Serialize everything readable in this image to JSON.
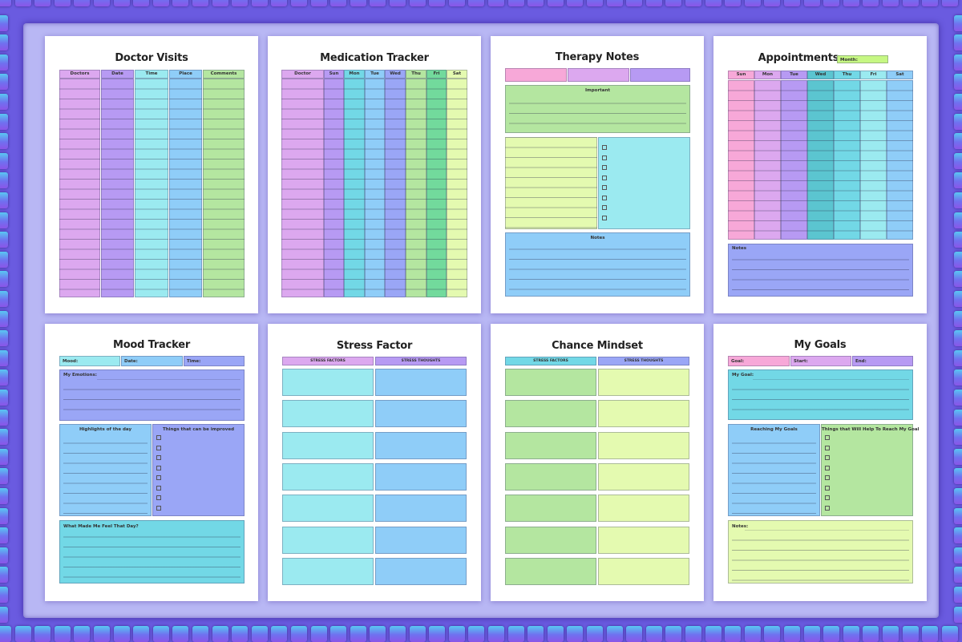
{
  "colors": {
    "pink": "#f7a8d8",
    "lilac": "#dca8ef",
    "purple": "#b79af3",
    "periwinkle": "#9aa6f6",
    "blue": "#8fcdf8",
    "cyan": "#9beaf0",
    "teal": "#5bc5d0",
    "green": "#b4e6a0",
    "mint": "#72da9c",
    "lime": "#e4fab0",
    "limebright": "#c6f783"
  },
  "doctor_visits": {
    "title": "Doctor Visits",
    "columns": [
      "Doctors",
      "Date",
      "Time",
      "Place",
      "Comments"
    ]
  },
  "medication_tracker": {
    "title": "Medication Tracker",
    "columns": [
      "Doctor",
      "Sun",
      "Mon",
      "Tue",
      "Wed",
      "Thu",
      "Fri",
      "Sat"
    ]
  },
  "therapy_notes": {
    "title": "Therapy Notes",
    "important_label": "Important",
    "notes_label": "Notes"
  },
  "appointments": {
    "title": "Appointments",
    "month_label": "Month:",
    "days": [
      "Sun",
      "Mon",
      "Tue",
      "Wed",
      "Thu",
      "Fri",
      "Sat"
    ],
    "notes_label": "Notes"
  },
  "mood_tracker": {
    "title": "Mood Tracker",
    "mood_label": "Mood:",
    "date_label": "Date:",
    "time_label": "Time:",
    "emotions_label": "My Emotions:",
    "highlights_label": "Highlights of the day",
    "improve_label": "Things that can be improved",
    "feel_label": "What Made Me Feel That Day?"
  },
  "stress_factor": {
    "title": "Stress Factor",
    "col1": "STRESS FACTORS",
    "col2": "STRESS THOUGHTS"
  },
  "chance_mindset": {
    "title": "Chance Mindset",
    "col1": "STRESS FACTORS",
    "col2": "STRESS THOUGHTS"
  },
  "my_goals": {
    "title": "My Goals",
    "goal_label": "Goal:",
    "start_label": "Start:",
    "end_label": "End:",
    "my_goal_label": "My Goal:",
    "reaching_label": "Reaching My Goals",
    "help_label": "Things that Will Help To Reach My Goal",
    "notes_label": "Notes:"
  }
}
